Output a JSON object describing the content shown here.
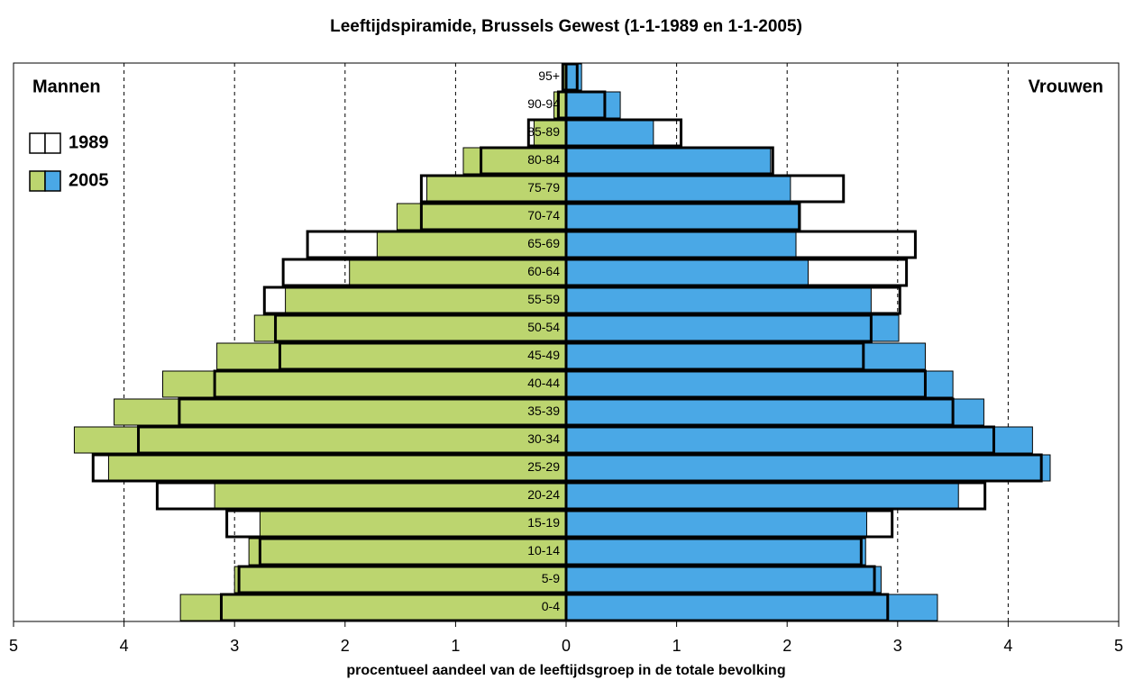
{
  "chart_data": {
    "type": "pyramid",
    "title": "Leeftijdspiramide, Brussels Gewest (1-1-1989 en 1-1-2005)",
    "x_label": "procentueel aandeel van de leeftijdsgroep in de totale bevolking",
    "left_label": "Mannen",
    "right_label": "Vrouwen",
    "categories": [
      "0-4",
      "5-9",
      "10-14",
      "15-19",
      "20-24",
      "25-29",
      "30-34",
      "35-39",
      "40-44",
      "45-49",
      "50-54",
      "55-59",
      "60-64",
      "65-69",
      "70-74",
      "75-79",
      "80-84",
      "85-89",
      "90-94",
      "95+"
    ],
    "series": [
      {
        "name": "2005",
        "left_color": "#bcd56f",
        "right_color": "#4aa8e6",
        "outline": false,
        "left": [
          3.49,
          3.0,
          2.87,
          2.77,
          3.18,
          4.14,
          4.45,
          4.09,
          3.65,
          3.16,
          2.82,
          2.54,
          1.96,
          1.71,
          1.53,
          1.26,
          0.93,
          0.29,
          0.11,
          0.03
        ],
        "right": [
          3.36,
          2.85,
          2.71,
          2.72,
          3.55,
          4.38,
          4.22,
          3.78,
          3.5,
          3.25,
          3.01,
          2.76,
          2.19,
          2.08,
          2.12,
          2.03,
          1.85,
          0.79,
          0.49,
          0.14
        ]
      },
      {
        "name": "1989",
        "left_color": "#ffffff",
        "right_color": "#ffffff",
        "outline": true,
        "left": [
          3.12,
          2.96,
          2.77,
          3.07,
          3.7,
          4.28,
          3.87,
          3.5,
          3.18,
          2.59,
          2.63,
          2.73,
          2.56,
          2.34,
          1.31,
          1.31,
          0.77,
          0.34,
          0.07,
          0.03
        ],
        "right": [
          2.91,
          2.79,
          2.67,
          2.95,
          3.79,
          4.3,
          3.87,
          3.5,
          3.25,
          2.69,
          2.76,
          3.02,
          3.08,
          3.16,
          2.11,
          2.51,
          1.87,
          1.04,
          0.35,
          0.1
        ]
      }
    ],
    "xlim": [
      -5,
      5
    ],
    "xticks": [
      {
        "value": -5,
        "label": "5"
      },
      {
        "value": -4,
        "label": "4"
      },
      {
        "value": -3,
        "label": "3"
      },
      {
        "value": -2,
        "label": "2"
      },
      {
        "value": -1,
        "label": "1"
      },
      0,
      1,
      2,
      3,
      4,
      5
    ],
    "grid": true
  }
}
